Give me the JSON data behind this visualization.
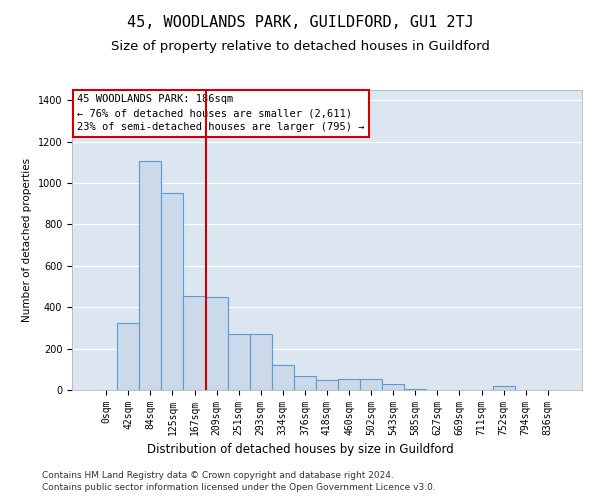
{
  "title": "45, WOODLANDS PARK, GUILDFORD, GU1 2TJ",
  "subtitle": "Size of property relative to detached houses in Guildford",
  "xlabel": "Distribution of detached houses by size in Guildford",
  "ylabel": "Number of detached properties",
  "footnote1": "Contains HM Land Registry data © Crown copyright and database right 2024.",
  "footnote2": "Contains public sector information licensed under the Open Government Licence v3.0.",
  "annotation_line1": "45 WOODLANDS PARK: 186sqm",
  "annotation_line2": "← 76% of detached houses are smaller (2,611)",
  "annotation_line3": "23% of semi-detached houses are larger (795) →",
  "bar_edge_color": "#5b9bd5",
  "bar_face_color": "#ccd9ea",
  "vline_color": "#cc0000",
  "background_color": "#dce6f0",
  "grid_color": "#ffffff",
  "categories": [
    "0sqm",
    "42sqm",
    "84sqm",
    "125sqm",
    "167sqm",
    "209sqm",
    "251sqm",
    "293sqm",
    "334sqm",
    "376sqm",
    "418sqm",
    "460sqm",
    "502sqm",
    "543sqm",
    "585sqm",
    "627sqm",
    "669sqm",
    "711sqm",
    "752sqm",
    "794sqm",
    "836sqm"
  ],
  "values": [
    2,
    325,
    1108,
    950,
    455,
    450,
    270,
    270,
    120,
    70,
    50,
    55,
    55,
    30,
    5,
    1,
    1,
    1,
    20,
    1,
    1
  ],
  "vline_x": 4.5,
  "ylim": [
    0,
    1450
  ],
  "yticks": [
    0,
    200,
    400,
    600,
    800,
    1000,
    1200,
    1400
  ],
  "title_fontsize": 11,
  "subtitle_fontsize": 9.5,
  "xlabel_fontsize": 8.5,
  "ylabel_fontsize": 7.5,
  "tick_fontsize": 7,
  "annotation_fontsize": 7.5,
  "footnote_fontsize": 6.5
}
